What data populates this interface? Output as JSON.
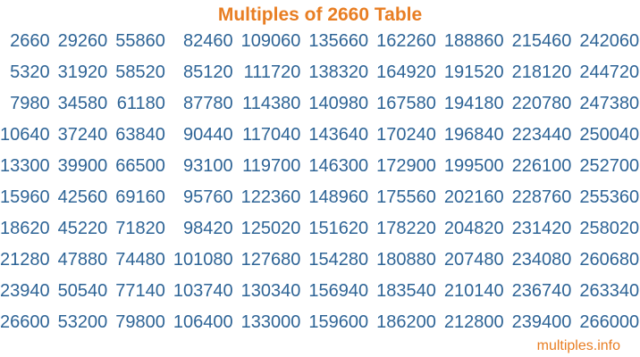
{
  "title": "Multiples of 2660 Table",
  "table": {
    "rows": [
      [
        2660,
        29260,
        55860,
        82460,
        109060,
        135660,
        162260,
        188860,
        215460,
        242060
      ],
      [
        5320,
        31920,
        58520,
        85120,
        111720,
        138320,
        164920,
        191520,
        218120,
        244720
      ],
      [
        7980,
        34580,
        61180,
        87780,
        114380,
        140980,
        167580,
        194180,
        220780,
        247380
      ],
      [
        10640,
        37240,
        63840,
        90440,
        117040,
        143640,
        170240,
        196840,
        223440,
        250040
      ],
      [
        13300,
        39900,
        66500,
        93100,
        119700,
        146300,
        172900,
        199500,
        226100,
        252700
      ],
      [
        15960,
        42560,
        69160,
        95760,
        122360,
        148960,
        175560,
        202160,
        228760,
        255360
      ],
      [
        18620,
        45220,
        71820,
        98420,
        125020,
        151620,
        178220,
        204820,
        231420,
        258020
      ],
      [
        21280,
        47880,
        74480,
        101080,
        127680,
        154280,
        180880,
        207480,
        234080,
        260680
      ],
      [
        23940,
        50540,
        77140,
        103740,
        130340,
        156940,
        183540,
        210140,
        236740,
        263340
      ],
      [
        26600,
        53200,
        79800,
        106400,
        133000,
        159600,
        186200,
        212800,
        239400,
        266000
      ]
    ]
  },
  "footer": {
    "site_label": "multiples.info"
  },
  "colors": {
    "title_orange": "#E87E23",
    "number_blue": "#2E6496",
    "background": "#FFFFFF"
  }
}
